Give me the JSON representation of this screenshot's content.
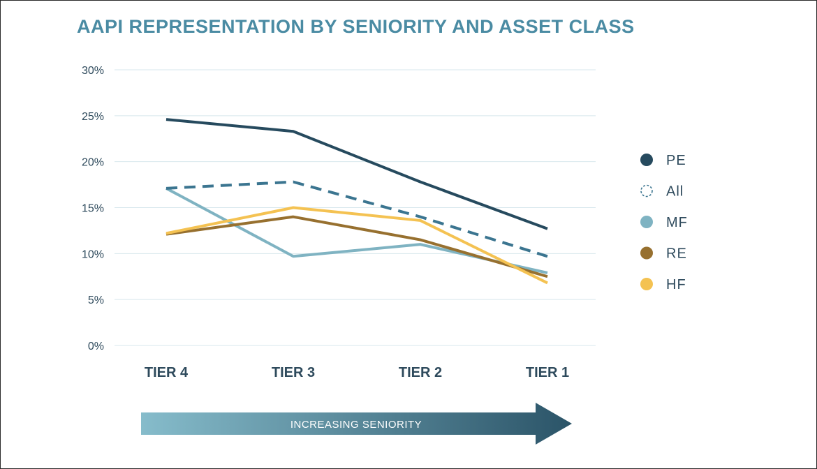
{
  "chart_data": {
    "type": "line",
    "title": "AAPI REPRESENTATION BY SENIORITY AND ASSET CLASS",
    "categories": [
      "TIER 4",
      "TIER 3",
      "TIER 2",
      "TIER 1"
    ],
    "ylim": [
      0,
      30
    ],
    "yticks": [
      0,
      5,
      10,
      15,
      20,
      25,
      30
    ],
    "ytick_suffix": "%",
    "grid": true,
    "legend_position": "right",
    "series": [
      {
        "name": "PE",
        "values": [
          24.6,
          23.3,
          17.8,
          12.7
        ],
        "color": "#264a5e",
        "dashed": false
      },
      {
        "name": "All",
        "values": [
          17.1,
          17.8,
          14.0,
          9.7
        ],
        "color": "#3b7590",
        "dashed": true
      },
      {
        "name": "MF",
        "values": [
          17.1,
          9.7,
          11.0,
          7.9
        ],
        "color": "#7fb3c2",
        "dashed": false
      },
      {
        "name": "RE",
        "values": [
          12.1,
          14.0,
          11.5,
          7.5
        ],
        "color": "#97702f",
        "dashed": false
      },
      {
        "name": "HF",
        "values": [
          12.2,
          15.0,
          13.6,
          6.8
        ],
        "color": "#f4c252",
        "dashed": false
      }
    ],
    "arrow_label": "INCREASING SENIORITY",
    "title_color": "#4a8ba3",
    "arrow_gradient": [
      "#86bccb",
      "#2b5468"
    ]
  }
}
